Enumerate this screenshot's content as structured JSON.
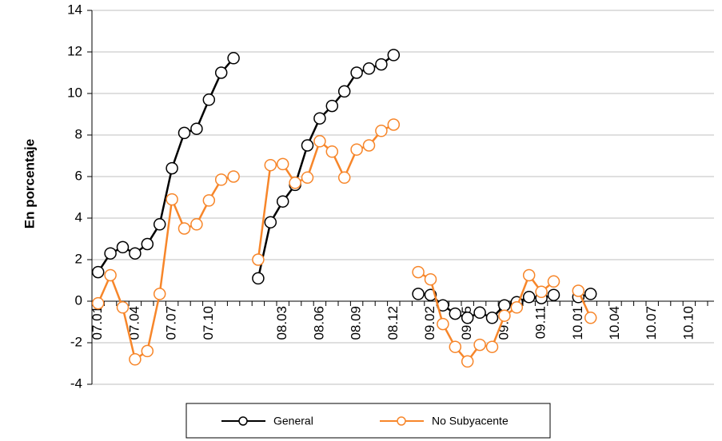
{
  "chart_data": {
    "type": "line",
    "ylabel": "En porcentaje",
    "categories": [
      "07.01",
      null,
      null,
      "07.04",
      null,
      null,
      "07.07",
      null,
      null,
      "07.10",
      null,
      null,
      null,
      null,
      null,
      "08.03",
      null,
      null,
      "08.06",
      null,
      null,
      "08.09",
      null,
      null,
      "08.12",
      null,
      null,
      "09.02",
      null,
      null,
      "09.05",
      null,
      null,
      "09.08",
      null,
      null,
      "09.11",
      null,
      null,
      "10.01",
      null,
      null,
      "10.04",
      null,
      null,
      "10.07",
      null,
      null,
      "10.10",
      null,
      null
    ],
    "series": [
      {
        "name": "General",
        "color": "#000000",
        "values": [
          1.4,
          2.3,
          2.6,
          2.3,
          2.75,
          3.7,
          6.4,
          8.1,
          8.3,
          9.7,
          11.0,
          11.7,
          null,
          1.1,
          3.8,
          4.8,
          5.6,
          7.5,
          8.8,
          9.4,
          10.1,
          11.0,
          11.2,
          11.4,
          11.85,
          null,
          0.35,
          0.3,
          -0.2,
          -0.6,
          -0.8,
          -0.55,
          -0.8,
          -0.2,
          -0.05,
          0.2,
          0.15,
          0.3,
          null,
          0.2,
          0.35,
          null,
          null,
          null,
          null,
          null,
          null,
          null,
          null,
          null,
          null
        ]
      },
      {
        "name": "No Subyacente",
        "color": "#f7862a",
        "values": [
          -0.1,
          1.25,
          -0.3,
          -2.8,
          -2.4,
          0.35,
          4.9,
          3.5,
          3.7,
          4.85,
          5.85,
          6.0,
          null,
          2.0,
          6.55,
          6.6,
          5.7,
          5.95,
          7.7,
          7.2,
          5.95,
          7.3,
          7.5,
          8.2,
          8.5,
          null,
          1.4,
          1.05,
          -1.1,
          -2.2,
          -2.9,
          -2.1,
          -2.2,
          -0.7,
          -0.3,
          1.25,
          0.45,
          0.95,
          null,
          0.5,
          -0.8,
          null,
          null,
          null,
          null,
          null,
          null,
          null,
          null,
          null,
          null
        ]
      }
    ],
    "ylim": [
      -4,
      14
    ],
    "yticks": [
      -4,
      -2,
      0,
      2,
      4,
      6,
      8,
      10,
      12,
      14
    ],
    "grid": true,
    "legend": "bottom"
  }
}
